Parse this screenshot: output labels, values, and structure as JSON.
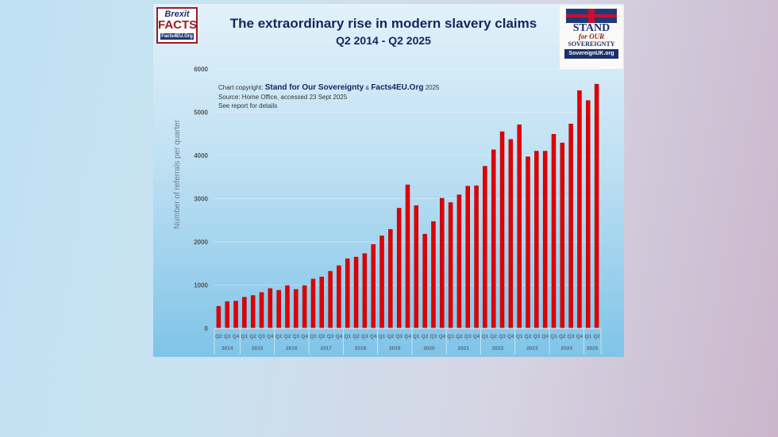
{
  "logos": {
    "left": {
      "line1": "Brexit",
      "line2": "FACTS",
      "line3": "Facts4EU.Org"
    },
    "right": {
      "line1": "STAND",
      "line2": "for OUR",
      "line3": "SOVEREIGNTY",
      "line4": "SovereignUK.org"
    }
  },
  "chart_data": {
    "type": "bar",
    "title": "The extraordinary rise in modern slavery claims",
    "subtitle": "Q2 2014 - Q2 2025",
    "ylabel": "Number of referrals per quarter",
    "xlabel": "",
    "ylim": [
      0,
      6000
    ],
    "yticks": [
      "0",
      "1000",
      "2000",
      "3000",
      "4000",
      "5000",
      "6000"
    ],
    "grid": true,
    "bar_color": "#e00000",
    "annotations": {
      "copyright_prefix": "Chart copyright:",
      "copyright_org1": "Stand for Our Sovereignty",
      "copyright_amp": "&",
      "copyright_org2": "Facts4EU.Org",
      "copyright_year": "2025",
      "source": "Source: Home Office, accessed 23 Sept 2025",
      "note": "See report for details"
    },
    "years": [
      {
        "label": "2014",
        "quarters": [
          "Q2",
          "Q3",
          "Q4"
        ]
      },
      {
        "label": "2015",
        "quarters": [
          "Q1",
          "Q2",
          "Q3",
          "Q4"
        ]
      },
      {
        "label": "2016",
        "quarters": [
          "Q1",
          "Q2",
          "Q3",
          "Q4"
        ]
      },
      {
        "label": "2017",
        "quarters": [
          "Q1",
          "Q2",
          "Q3",
          "Q4"
        ]
      },
      {
        "label": "2018",
        "quarters": [
          "Q1",
          "Q2",
          "Q3",
          "Q4"
        ]
      },
      {
        "label": "2019",
        "quarters": [
          "Q1",
          "Q2",
          "Q3",
          "Q4"
        ]
      },
      {
        "label": "2020",
        "quarters": [
          "Q1",
          "Q2",
          "Q3",
          "Q4"
        ]
      },
      {
        "label": "2021",
        "quarters": [
          "Q1",
          "Q2",
          "Q3",
          "Q4"
        ]
      },
      {
        "label": "2022",
        "quarters": [
          "Q1",
          "Q2",
          "Q3",
          "Q4"
        ]
      },
      {
        "label": "2023",
        "quarters": [
          "Q1",
          "Q2",
          "Q3",
          "Q4"
        ]
      },
      {
        "label": "2024",
        "quarters": [
          "Q1",
          "Q2",
          "Q3",
          "Q4"
        ]
      },
      {
        "label": "2025",
        "quarters": [
          "Q1",
          "Q2"
        ]
      }
    ],
    "values": [
      510,
      620,
      630,
      720,
      760,
      830,
      920,
      880,
      990,
      900,
      990,
      1140,
      1190,
      1320,
      1450,
      1610,
      1650,
      1730,
      1940,
      2140,
      2290,
      2780,
      3320,
      2840,
      2180,
      2470,
      3010,
      2910,
      3090,
      3290,
      3300,
      3750,
      4130,
      4550,
      4370,
      4710,
      3970,
      4100,
      4100,
      4490,
      4290,
      4730,
      5500,
      5270,
      5650
    ]
  }
}
